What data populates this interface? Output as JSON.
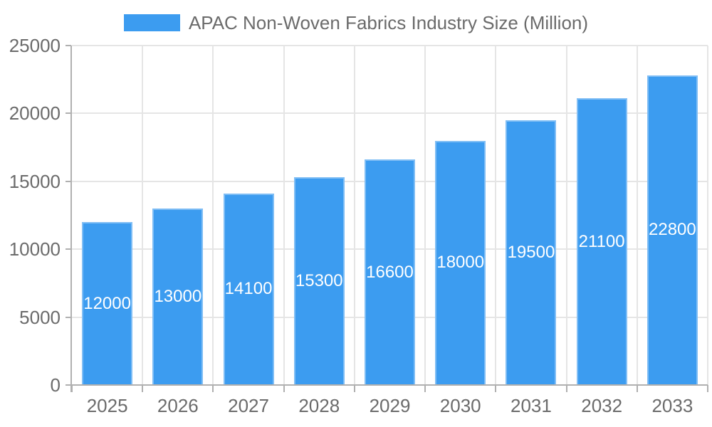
{
  "chart_data": {
    "type": "bar",
    "title": "APAC Non-Woven Fabrics Industry Size (Million)",
    "legend": {
      "position": "top",
      "entries": [
        "APAC Non-Woven Fabrics Industry Size (Million)"
      ]
    },
    "categories": [
      "2025",
      "2026",
      "2027",
      "2028",
      "2029",
      "2030",
      "2031",
      "2032",
      "2033"
    ],
    "values": [
      12000,
      13000,
      14100,
      15300,
      16600,
      18000,
      19500,
      21100,
      22800
    ],
    "xlabel": "",
    "ylabel": "",
    "ylim": [
      0,
      25000
    ],
    "yticks": [
      0,
      5000,
      10000,
      15000,
      20000,
      25000
    ],
    "grid": true,
    "bar_labels_visible": true,
    "colors": {
      "bar_fill": "#3C9CF0",
      "bar_border": "rgba(255,255,255,0.35)",
      "grid": "#E5E5E5",
      "axis": "#B0B0B0",
      "text": "#6B6B6B",
      "value_label": "#FFFFFF",
      "background": "#FFFFFF"
    }
  }
}
